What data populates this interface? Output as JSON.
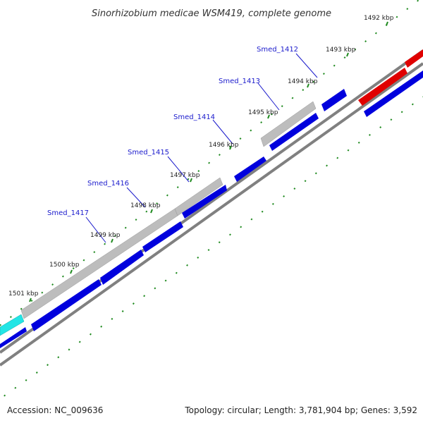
{
  "title": "Sinorhizobium medicae WSM419, complete genome",
  "footer": {
    "accession": "Accession: NC_009636",
    "summary": "Topology: circular; Length: 3,781,904 bp; Genes: 3,592"
  },
  "colors": {
    "forward_gene": "#0000dd",
    "highlight_gene": "#bdbdbd",
    "red_gene": "#e00000",
    "cyan_gene": "#22e5e5",
    "backbone": "#808080",
    "ticks": "#1f8a1f",
    "labels": "#1a1acc"
  },
  "ticks": [
    {
      "label": "1492 kbp"
    },
    {
      "label": "1493 kbp"
    },
    {
      "label": "1494 kbp"
    },
    {
      "label": "1495 kbp"
    },
    {
      "label": "1496 kbp"
    },
    {
      "label": "1497 kbp"
    },
    {
      "label": "1498 kbp"
    },
    {
      "label": "1499 kbp"
    },
    {
      "label": "1500 kbp"
    },
    {
      "label": "1501 kbp"
    }
  ],
  "gene_labels": [
    {
      "label": "Smed_1412"
    },
    {
      "label": "Smed_1413"
    },
    {
      "label": "Smed_1414"
    },
    {
      "label": "Smed_1415"
    },
    {
      "label": "Smed_1416"
    },
    {
      "label": "Smed_1417"
    }
  ]
}
